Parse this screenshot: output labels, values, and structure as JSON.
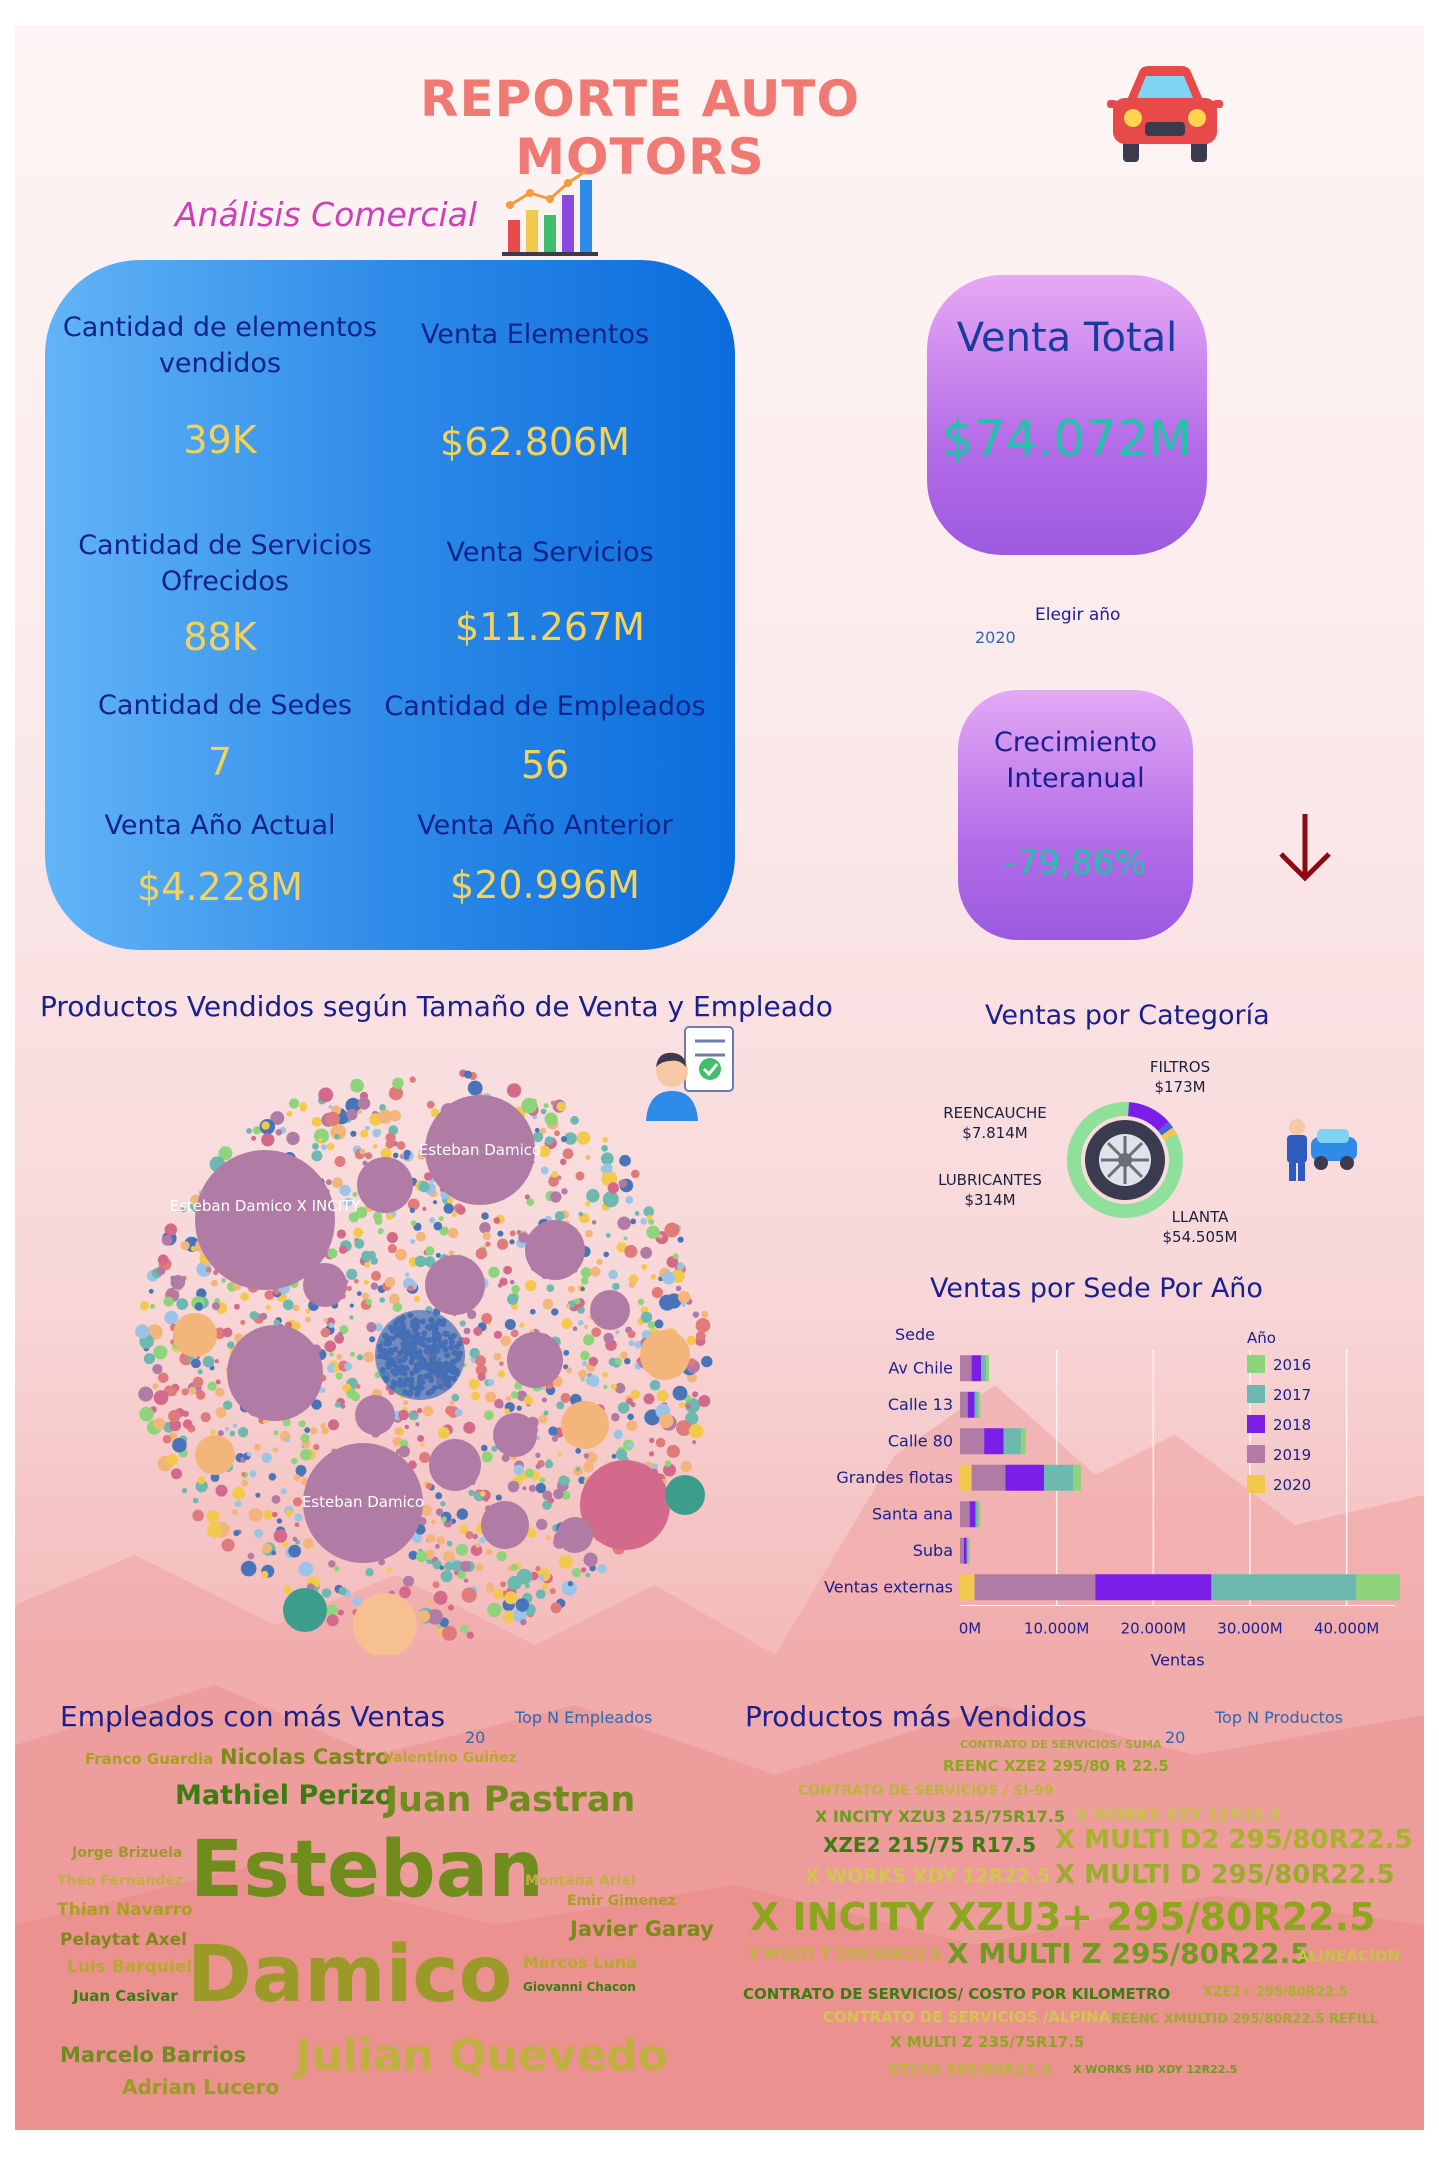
{
  "header": {
    "title": "REPORTE AUTO MOTORS",
    "subtitle": "Análisis Comercial"
  },
  "kpis": [
    {
      "label": "Cantidad de elementos vendidos",
      "value": "39K"
    },
    {
      "label": "Venta Elementos",
      "value": "$62.806M"
    },
    {
      "label": "Cantidad de Servicios Ofrecidos",
      "value": "88K"
    },
    {
      "label": "Venta Servicios",
      "value": "$11.267M"
    },
    {
      "label": "Cantidad de Sedes",
      "value": "7"
    },
    {
      "label": "Cantidad de Empleados",
      "value": "56"
    },
    {
      "label": "Venta Año Actual",
      "value": "$4.228M"
    },
    {
      "label": "Venta Año Anterior",
      "value": "$20.996M"
    }
  ],
  "venta_total": {
    "label": "Venta Total",
    "value": "$74.072M"
  },
  "year_slicer": {
    "label": "Elegir año",
    "value": "2020"
  },
  "crecimiento": {
    "label": "Crecimiento Interanual",
    "value": "-79,86%"
  },
  "bubble": {
    "title": "Productos Vendidos según Tamaño de Venta y Empleado",
    "labels": [
      "Esteban Damico X INCITY",
      "Esteban Damico",
      "Esteban Damico"
    ]
  },
  "colors": {
    "accent_title": "#f07a73",
    "kpi_value": "#f5d35a",
    "big_value": "#1ec5a8",
    "arrow": "#8b0a14",
    "y2016": "#8ed47a",
    "y2017": "#6db9b0",
    "y2018": "#7b1fe8",
    "y2019": "#b07ca5",
    "y2020": "#f2c94c"
  },
  "chart_data": [
    {
      "type": "donut",
      "title": "Ventas por Categoría",
      "categories": [
        "LLANTA",
        "REENCAUCHE",
        "LUBRICANTES",
        "FILTROS"
      ],
      "values": [
        54505,
        7814,
        314,
        173
      ],
      "labels": [
        "$54.505M",
        "$7.814M",
        "$314M",
        "$173M"
      ],
      "colors": [
        "#8ee09b",
        "#7b1fe8",
        "#4b64d8",
        "#f2c94c"
      ]
    },
    {
      "type": "bar",
      "orientation": "horizontal",
      "stacked": true,
      "title": "Ventas por Sede Por Año",
      "y_title": "Sede",
      "xlabel": "Ventas",
      "legend_title": "Año",
      "legend_position": "right",
      "categories": [
        "Av Chile",
        "Calle 13",
        "Calle 80",
        "Grandes flotas",
        "Santa ana",
        "Suba",
        "Ventas externas"
      ],
      "xticks": [
        "0M",
        "10.000M",
        "20.000M",
        "30.000M",
        "40.000M"
      ],
      "xlim": [
        0,
        45000
      ],
      "series": [
        {
          "name": "2020",
          "values": [
            0,
            0,
            0,
            1200,
            0,
            0,
            1500
          ]
        },
        {
          "name": "2019",
          "values": [
            1200,
            800,
            2500,
            3500,
            1000,
            400,
            12500
          ]
        },
        {
          "name": "2018",
          "values": [
            1000,
            700,
            2000,
            4000,
            600,
            300,
            12000
          ]
        },
        {
          "name": "2017",
          "values": [
            500,
            400,
            1800,
            3000,
            300,
            200,
            15000
          ]
        },
        {
          "name": "2016",
          "values": [
            300,
            200,
            500,
            800,
            200,
            100,
            4500
          ]
        }
      ]
    }
  ],
  "employees": {
    "title": "Empleados con más Ventas",
    "slicer_label": "Top N Empleados",
    "slicer_value": "20",
    "words": [
      {
        "text": "Franco Guardia",
        "size": 15
      },
      {
        "text": "Nicolas Castro",
        "size": 21
      },
      {
        "text": "Valentino Guiñez",
        "size": 14
      },
      {
        "text": "Mathiel Perizo",
        "size": 27
      },
      {
        "text": "Juan Pastran",
        "size": 35
      },
      {
        "text": "Jorge Brizuela",
        "size": 14
      },
      {
        "text": "Theo Fernandez",
        "size": 14
      },
      {
        "text": "Thian Navarro",
        "size": 17
      },
      {
        "text": "Pelaytat Axel",
        "size": 17
      },
      {
        "text": "Luis Barquiel",
        "size": 17
      },
      {
        "text": "Juan Casivar",
        "size": 15
      },
      {
        "text": "Esteban",
        "size": 78
      },
      {
        "text": "Damico",
        "size": 78
      },
      {
        "text": "Montaña Ariel",
        "size": 14
      },
      {
        "text": "Emir Gimenez",
        "size": 14
      },
      {
        "text": "Javier Garay",
        "size": 21
      },
      {
        "text": "Marcos Luna",
        "size": 16
      },
      {
        "text": "Giovanni Chacon",
        "size": 12
      },
      {
        "text": "Marcelo Barrios",
        "size": 21
      },
      {
        "text": "Adrian Lucero",
        "size": 20
      },
      {
        "text": "Julian Quevedo",
        "size": 44
      }
    ]
  },
  "products": {
    "title": "Productos más Vendidos",
    "slicer_label": "Top N Productos",
    "slicer_value": "20",
    "words": [
      {
        "text": "CONTRATO DE SERVICIOS/ SUMA",
        "size": 11
      },
      {
        "text": "REENC XZE2 295/80 R 22.5",
        "size": 15
      },
      {
        "text": "CONTRATO DE SERVICIOS / SI-99",
        "size": 14
      },
      {
        "text": "X INCITY XZU3 215/75R17.5",
        "size": 16
      },
      {
        "text": "X WORKS XZY 12R22.5",
        "size": 16
      },
      {
        "text": "XZE2 215/75 R17.5",
        "size": 20
      },
      {
        "text": "X MULTI D2 295/80R22.5",
        "size": 26
      },
      {
        "text": "X WORKS XDY 12R22.5",
        "size": 19
      },
      {
        "text": "X MULTI D 295/80R22.5",
        "size": 26
      },
      {
        "text": "X INCITY XZU3+ 295/80R22.5",
        "size": 38
      },
      {
        "text": "X MULTI T 295/80R22.5",
        "size": 15
      },
      {
        "text": "X MULTI Z 295/80R22.5",
        "size": 28
      },
      {
        "text": "ALINEACION",
        "size": 15
      },
      {
        "text": "CONTRATO DE SERVICIOS/ COSTO POR KILOMETRO",
        "size": 15
      },
      {
        "text": "XZE2+ 295/80R22.5",
        "size": 13
      },
      {
        "text": "CONTRATO DE SERVICIOS /ALPINA",
        "size": 15
      },
      {
        "text": "REENC XMULTID 295/80R22.5 REFILL",
        "size": 13
      },
      {
        "text": "X MULTI Z 235/75R17.5",
        "size": 15
      },
      {
        "text": "ST250 295/80R22.5",
        "size": 15
      },
      {
        "text": "X WORKS HD XDY 12R22.5",
        "size": 11
      }
    ]
  },
  "icons": [
    "car-icon",
    "bar-chart-icon",
    "employee-icon",
    "mechanic-icon",
    "tire-icon",
    "down-arrow-icon"
  ]
}
